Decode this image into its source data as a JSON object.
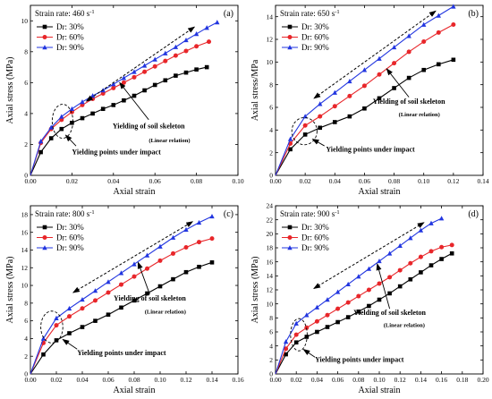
{
  "chart_data": [
    {
      "type": "line",
      "panel": "(a)",
      "strain_rate_label": "Strain rate: 460 s",
      "strain_rate_sup": "-1",
      "xlabel": "Axial strain",
      "ylabel": "Axial stress (MPa)",
      "xlim": [
        0.0,
        0.1
      ],
      "ylim": [
        0,
        11
      ],
      "xticks": [
        "0.00",
        "0.02",
        "0.04",
        "0.06",
        "0.08",
        "0.10"
      ],
      "yticks": [
        "0",
        "2",
        "4",
        "6",
        "8",
        "10"
      ],
      "annotations": {
        "yield_skeleton": "Yielding of soil skeleton",
        "linear": "(Linear relation)",
        "yield_points": "Yielding points under impact"
      },
      "series": [
        {
          "name": "Dr: 30%",
          "color": "#000000",
          "marker": "square",
          "x": [
            0,
            0.005,
            0.01,
            0.015,
            0.02,
            0.025,
            0.03,
            0.035,
            0.04,
            0.045,
            0.05,
            0.055,
            0.06,
            0.065,
            0.07,
            0.075,
            0.08,
            0.085
          ],
          "y": [
            0,
            1.5,
            2.4,
            3.0,
            3.4,
            3.7,
            4.0,
            4.3,
            4.55,
            4.85,
            5.15,
            5.5,
            5.85,
            6.15,
            6.45,
            6.65,
            6.85,
            7.0
          ]
        },
        {
          "name": "Dr: 60%",
          "color": "#e8262a",
          "marker": "circle",
          "x": [
            0,
            0.005,
            0.01,
            0.015,
            0.02,
            0.025,
            0.03,
            0.035,
            0.04,
            0.045,
            0.05,
            0.055,
            0.06,
            0.065,
            0.07,
            0.075,
            0.08,
            0.086
          ],
          "y": [
            0,
            2.1,
            3.0,
            3.6,
            4.1,
            4.55,
            4.95,
            5.3,
            5.65,
            6.0,
            6.35,
            6.7,
            7.05,
            7.4,
            7.75,
            8.05,
            8.35,
            8.65
          ]
        },
        {
          "name": "Dr: 90%",
          "color": "#2236e0",
          "marker": "triangle",
          "x": [
            0,
            0.005,
            0.01,
            0.015,
            0.02,
            0.025,
            0.03,
            0.035,
            0.04,
            0.045,
            0.05,
            0.055,
            0.06,
            0.065,
            0.07,
            0.075,
            0.08,
            0.085,
            0.09
          ],
          "y": [
            0,
            2.2,
            3.1,
            3.8,
            4.3,
            4.75,
            5.15,
            5.5,
            5.9,
            6.3,
            6.7,
            7.1,
            7.5,
            7.9,
            8.3,
            8.75,
            9.15,
            9.55,
            9.9
          ]
        }
      ]
    },
    {
      "type": "line",
      "panel": "(b)",
      "strain_rate_label": "Strain rate: 650 s",
      "strain_rate_sup": "-1",
      "xlabel": "Axial strain",
      "ylabel": "Axial stress/MPa",
      "xlim": [
        0.0,
        0.14
      ],
      "ylim": [
        0,
        15
      ],
      "xticks": [
        "0.00",
        "0.02",
        "0.04",
        "0.06",
        "0.08",
        "0.10",
        "0.12",
        "0.14"
      ],
      "yticks": [
        "0",
        "2",
        "4",
        "6",
        "8",
        "10",
        "12",
        "14"
      ],
      "annotations": {
        "yield_skeleton": "Yielding of soil skeleton",
        "linear": "(Linear relation)",
        "yield_points": "Yielding points under impact"
      },
      "series": [
        {
          "name": "Dr: 30%",
          "color": "#000000",
          "marker": "square",
          "x": [
            0,
            0.01,
            0.02,
            0.03,
            0.04,
            0.05,
            0.06,
            0.07,
            0.08,
            0.09,
            0.1,
            0.11,
            0.12
          ],
          "y": [
            0,
            2.3,
            3.6,
            4.2,
            4.7,
            5.2,
            5.9,
            6.8,
            7.7,
            8.6,
            9.3,
            9.8,
            10.2
          ]
        },
        {
          "name": "Dr: 60%",
          "color": "#e8262a",
          "marker": "circle",
          "x": [
            0,
            0.01,
            0.02,
            0.03,
            0.04,
            0.05,
            0.06,
            0.07,
            0.08,
            0.09,
            0.1,
            0.11,
            0.12
          ],
          "y": [
            0,
            2.8,
            4.4,
            5.2,
            6.1,
            7.0,
            7.9,
            8.9,
            9.9,
            10.9,
            11.8,
            12.6,
            13.3
          ]
        },
        {
          "name": "Dr: 90%",
          "color": "#2236e0",
          "marker": "triangle",
          "x": [
            0,
            0.01,
            0.02,
            0.03,
            0.04,
            0.05,
            0.06,
            0.07,
            0.08,
            0.09,
            0.1,
            0.11,
            0.12
          ],
          "y": [
            0,
            3.2,
            5.2,
            6.3,
            7.3,
            8.3,
            9.3,
            10.3,
            11.3,
            12.3,
            13.3,
            14.1,
            14.9
          ]
        }
      ]
    },
    {
      "type": "line",
      "panel": "(c)",
      "strain_rate_label": "Strain rate: 800 s",
      "strain_rate_sup": "-1",
      "xlabel": "Axial strain",
      "ylabel": "Axial stress (MPa)",
      "xlim": [
        0.0,
        0.16
      ],
      "ylim": [
        0,
        19
      ],
      "xticks": [
        "0.00",
        "0.02",
        "0.04",
        "0.06",
        "0.08",
        "0.10",
        "0.12",
        "0.14",
        "0.16"
      ],
      "yticks": [
        "0",
        "2",
        "4",
        "6",
        "8",
        "10",
        "12",
        "14",
        "16",
        "18"
      ],
      "annotations": {
        "yield_skeleton": "Yielding of soil skeleton",
        "linear": "(Linear relation)",
        "yield_points": "Yielding points under impact"
      },
      "series": [
        {
          "name": "Dr: 30%",
          "color": "#000000",
          "marker": "square",
          "x": [
            0,
            0.01,
            0.02,
            0.03,
            0.04,
            0.05,
            0.06,
            0.07,
            0.08,
            0.09,
            0.1,
            0.11,
            0.12,
            0.13,
            0.14
          ],
          "y": [
            0,
            2.2,
            3.8,
            4.6,
            5.3,
            6.0,
            6.7,
            7.5,
            8.3,
            9.1,
            9.9,
            10.7,
            11.5,
            12.1,
            12.6
          ]
        },
        {
          "name": "Dr: 60%",
          "color": "#e8262a",
          "marker": "circle",
          "x": [
            0,
            0.01,
            0.02,
            0.03,
            0.04,
            0.05,
            0.06,
            0.07,
            0.08,
            0.09,
            0.1,
            0.11,
            0.12,
            0.13,
            0.14
          ],
          "y": [
            0,
            3.5,
            5.5,
            6.5,
            7.4,
            8.3,
            9.2,
            10.1,
            11.0,
            11.9,
            12.8,
            13.6,
            14.3,
            14.9,
            15.3
          ]
        },
        {
          "name": "Dr: 90%",
          "color": "#2236e0",
          "marker": "triangle",
          "x": [
            0,
            0.01,
            0.02,
            0.03,
            0.04,
            0.05,
            0.06,
            0.07,
            0.08,
            0.09,
            0.1,
            0.11,
            0.12,
            0.13,
            0.14
          ],
          "y": [
            0,
            4.0,
            6.3,
            7.4,
            8.4,
            9.4,
            10.4,
            11.4,
            12.4,
            13.4,
            14.4,
            15.4,
            16.3,
            17.1,
            17.8
          ]
        }
      ]
    },
    {
      "type": "line",
      "panel": "(d)",
      "strain_rate_label": "Strain rate: 900 s",
      "strain_rate_sup": "-1",
      "xlabel": "Axial strain",
      "ylabel": "Axial stress (MPa)",
      "xlim": [
        0.0,
        0.2
      ],
      "ylim": [
        0,
        24
      ],
      "xticks": [
        "0.00",
        "0.02",
        "0.04",
        "0.06",
        "0.08",
        "0.10",
        "0.12",
        "0.14",
        "0.16",
        "0.18",
        "0.20"
      ],
      "yticks": [
        "0",
        "2",
        "4",
        "6",
        "8",
        "10",
        "12",
        "14",
        "16",
        "18",
        "20",
        "22",
        "24"
      ],
      "annotations": {
        "yield_skeleton": "Yielding of soil skeleton",
        "linear": "(Linear relation)",
        "yield_points": "Yielding points under impact"
      },
      "series": [
        {
          "name": "Dr: 30%",
          "color": "#000000",
          "marker": "square",
          "x": [
            0,
            0.01,
            0.02,
            0.03,
            0.04,
            0.05,
            0.06,
            0.07,
            0.08,
            0.09,
            0.1,
            0.11,
            0.12,
            0.13,
            0.14,
            0.15,
            0.16,
            0.17
          ],
          "y": [
            0,
            2.8,
            4.5,
            5.3,
            6.0,
            6.7,
            7.4,
            8.1,
            8.9,
            9.7,
            10.6,
            11.5,
            12.5,
            13.5,
            14.5,
            15.5,
            16.4,
            17.2
          ]
        },
        {
          "name": "Dr: 60%",
          "color": "#e8262a",
          "marker": "circle",
          "x": [
            0,
            0.01,
            0.02,
            0.03,
            0.04,
            0.05,
            0.06,
            0.07,
            0.08,
            0.09,
            0.1,
            0.11,
            0.12,
            0.13,
            0.14,
            0.15,
            0.16,
            0.17
          ],
          "y": [
            0,
            3.6,
            5.6,
            6.6,
            7.5,
            8.4,
            9.3,
            10.2,
            11.1,
            12.0,
            12.9,
            13.8,
            14.8,
            15.8,
            16.7,
            17.5,
            18.1,
            18.4
          ]
        },
        {
          "name": "Dr: 90%",
          "color": "#2236e0",
          "marker": "triangle",
          "x": [
            0,
            0.01,
            0.02,
            0.03,
            0.04,
            0.05,
            0.06,
            0.07,
            0.08,
            0.09,
            0.1,
            0.11,
            0.12,
            0.13,
            0.14,
            0.15,
            0.16
          ],
          "y": [
            0,
            4.6,
            7.2,
            8.4,
            9.5,
            10.6,
            11.7,
            12.8,
            13.9,
            15.0,
            16.1,
            17.2,
            18.3,
            19.4,
            20.5,
            21.5,
            22.2
          ]
        }
      ]
    }
  ]
}
